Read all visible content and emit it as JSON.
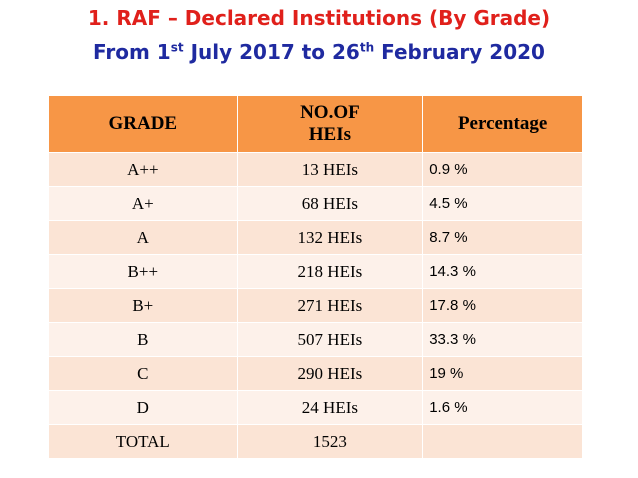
{
  "header": {
    "title": "1. RAF – Declared Institutions (By Grade)",
    "subtitle": [
      "From 1",
      "st",
      " July 2017 to 26",
      "th",
      " February 2020"
    ]
  },
  "table": {
    "columns": [
      "GRADE",
      "NO.OF\nHEIs",
      "Percentage"
    ],
    "rows": [
      [
        "A++",
        "13 HEIs",
        "0.9 %"
      ],
      [
        "A+",
        "68 HEIs",
        "4.5 %"
      ],
      [
        "A",
        "132 HEIs",
        "8.7 %"
      ],
      [
        "B++",
        "218 HEIs",
        "14.3 %"
      ],
      [
        "B+",
        "271 HEIs",
        "17.8 %"
      ],
      [
        "B",
        "507 HEIs",
        "33.3 %"
      ],
      [
        "C",
        "290 HEIs",
        "19 %"
      ],
      [
        "D",
        "24 HEIs",
        "1.6 %"
      ],
      [
        "TOTAL",
        "1523"
      ]
    ]
  }
}
